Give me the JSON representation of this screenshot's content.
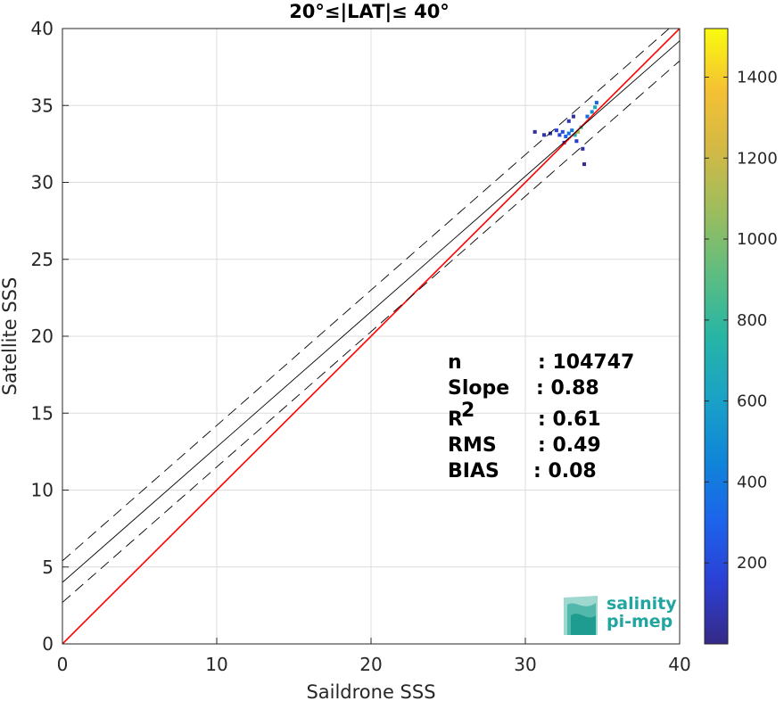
{
  "chart_data": {
    "type": "heatmap",
    "title": "20°≤|LAT|≤ 40°",
    "xlabel": "Saildrone SSS",
    "ylabel": "Satellite SSS",
    "xlim": [
      0,
      40
    ],
    "ylim": [
      0,
      40
    ],
    "xticks": [
      "0",
      "10",
      "20",
      "30",
      "40"
    ],
    "yticks": [
      "0",
      "5",
      "10",
      "15",
      "20",
      "25",
      "30",
      "35",
      "40"
    ],
    "grid": true,
    "colorbar": {
      "range": [
        0,
        1520
      ],
      "ticks": [
        "200",
        "400",
        "600",
        "800",
        "1000",
        "1200",
        "1400"
      ],
      "colormap": "parula"
    },
    "lines": [
      {
        "kind": "one-to-one",
        "color": "#ff0000",
        "intercept": 0,
        "slope": 1
      },
      {
        "kind": "regression",
        "color": "#000000",
        "intercept": 4.0,
        "slope": 0.88
      },
      {
        "kind": "regression-band-upper",
        "color": "#000000",
        "intercept": 5.4,
        "slope": 0.88
      },
      {
        "kind": "regression-band-lower",
        "color": "#000000",
        "intercept": 2.7,
        "slope": 0.88
      }
    ],
    "density_cells": [
      {
        "x": 34.6,
        "y": 35.2,
        "count": 300
      },
      {
        "x": 34.5,
        "y": 34.9,
        "count": 650
      },
      {
        "x": 34.3,
        "y": 34.6,
        "count": 500
      },
      {
        "x": 34.0,
        "y": 34.3,
        "count": 350
      },
      {
        "x": 33.6,
        "y": 33.6,
        "count": 900
      },
      {
        "x": 33.4,
        "y": 33.3,
        "count": 1100
      },
      {
        "x": 33.2,
        "y": 33.1,
        "count": 700
      },
      {
        "x": 33.0,
        "y": 33.4,
        "count": 400
      },
      {
        "x": 32.8,
        "y": 33.2,
        "count": 350
      },
      {
        "x": 32.6,
        "y": 33.0,
        "count": 300
      },
      {
        "x": 32.4,
        "y": 33.3,
        "count": 220
      },
      {
        "x": 32.2,
        "y": 33.1,
        "count": 160
      },
      {
        "x": 32.0,
        "y": 33.4,
        "count": 140
      },
      {
        "x": 31.6,
        "y": 33.2,
        "count": 90
      },
      {
        "x": 31.2,
        "y": 33.1,
        "count": 60
      },
      {
        "x": 30.6,
        "y": 33.3,
        "count": 30
      },
      {
        "x": 32.8,
        "y": 34.0,
        "count": 80
      },
      {
        "x": 33.1,
        "y": 34.3,
        "count": 60
      },
      {
        "x": 32.5,
        "y": 32.6,
        "count": 150
      },
      {
        "x": 33.3,
        "y": 32.7,
        "count": 120
      },
      {
        "x": 33.7,
        "y": 32.2,
        "count": 50
      },
      {
        "x": 33.8,
        "y": 31.2,
        "count": 20
      }
    ],
    "stats": [
      {
        "label": "n",
        "value": ": 104747"
      },
      {
        "label": "Slope",
        "value": ": 0.88"
      },
      {
        "label": "R",
        "sup": "2",
        "value": ": 0.61"
      },
      {
        "label": "RMS",
        "value": ": 0.49"
      },
      {
        "label": "BIAS",
        "value": ": 0.08"
      }
    ]
  },
  "logo": {
    "line1": "salinity",
    "line2": "pi-mep"
  }
}
